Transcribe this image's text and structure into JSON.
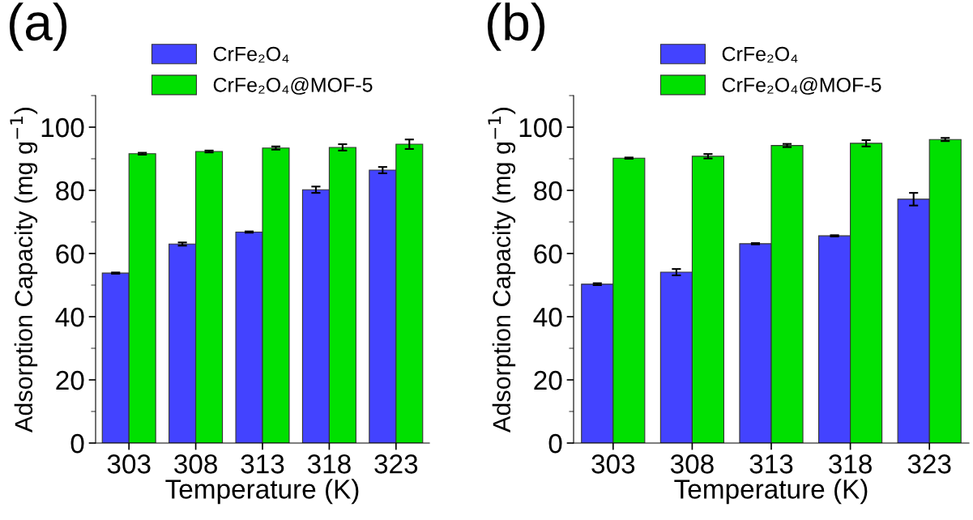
{
  "chart_data": [
    {
      "type": "bar",
      "title": "(a)",
      "xlabel": "Temperature (K)",
      "ylabel": "Adsorption Capacity (mg g$^{−1}$)",
      "categories": [
        "303",
        "308",
        "313",
        "318",
        "323"
      ],
      "series": [
        {
          "name": "CrFe₂O₄",
          "color": "#4343ff",
          "values": [
            53.8,
            63.0,
            66.8,
            80.2,
            86.4
          ],
          "errors": [
            0.2,
            0.5,
            0.2,
            1.0,
            1.0
          ]
        },
        {
          "name": "CrFe₂O₄@MOF-5",
          "color": "#00e000",
          "values": [
            91.6,
            92.3,
            93.4,
            93.6,
            94.6
          ],
          "errors": [
            0.3,
            0.3,
            0.5,
            1.0,
            1.5
          ]
        }
      ],
      "ylim": [
        0,
        110
      ],
      "yticks": [
        0,
        20,
        40,
        60,
        80,
        100
      ],
      "legend": "top",
      "grid": false
    },
    {
      "type": "bar",
      "title": "(b)",
      "xlabel": "Temperature (K)",
      "ylabel": "Adsorption Capacity (mg g$^{−1}$)",
      "categories": [
        "303",
        "308",
        "313",
        "318",
        "323"
      ],
      "series": [
        {
          "name": "CrFe₂O₄",
          "color": "#4343ff",
          "values": [
            50.3,
            54.1,
            63.1,
            65.6,
            77.2
          ],
          "errors": [
            0.3,
            1.0,
            0.2,
            0.2,
            2.0
          ]
        },
        {
          "name": "CrFe₂O₄@MOF-5",
          "color": "#00e000",
          "values": [
            90.2,
            90.8,
            94.2,
            94.9,
            96.1
          ],
          "errors": [
            0.2,
            0.7,
            0.5,
            1.0,
            0.5
          ]
        }
      ],
      "ylim": [
        0,
        110
      ],
      "yticks": [
        0,
        20,
        40,
        60,
        80,
        100
      ],
      "legend": "top",
      "grid": false
    }
  ]
}
